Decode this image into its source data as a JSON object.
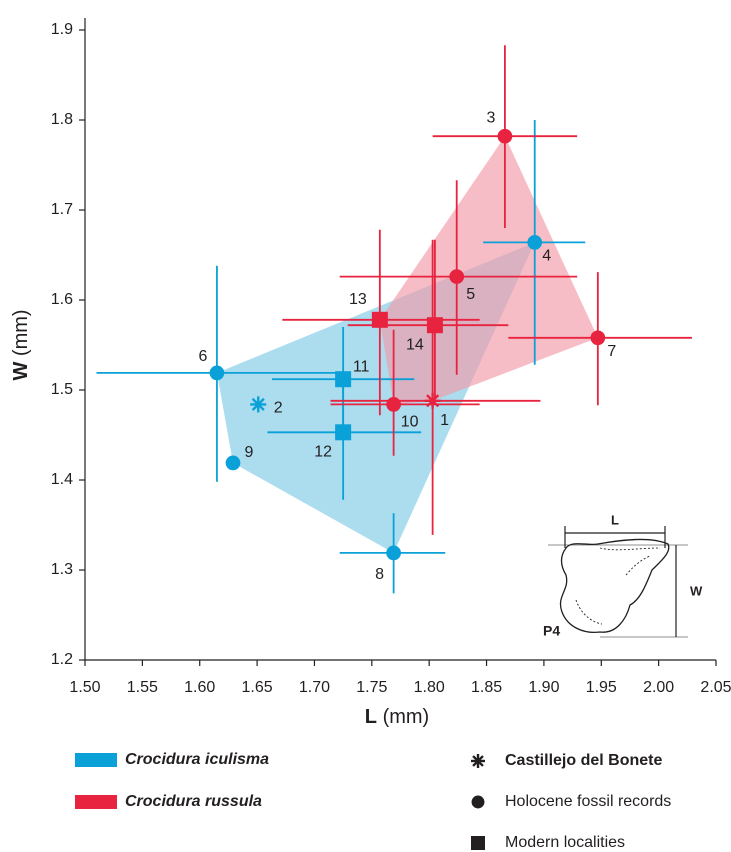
{
  "chart_data": {
    "type": "scatter",
    "x_label": "L",
    "x_unit": "(mm)",
    "y_label": "W",
    "y_unit": "(mm)",
    "xlim": [
      1.5,
      2.05
    ],
    "ylim": [
      1.2,
      1.9
    ],
    "xticks": [
      {
        "value": 1.5,
        "label": "1.50"
      },
      1.55,
      {
        "value": 1.6,
        "label": "1.60"
      },
      1.65,
      {
        "value": 1.7,
        "label": "1.70"
      },
      1.75,
      {
        "value": 1.8,
        "label": "1.80"
      },
      1.85,
      {
        "value": 1.9,
        "label": "1.90"
      },
      1.95,
      {
        "value": 2.0,
        "label": "2.00"
      },
      2.05
    ],
    "yticks": [
      1.2,
      1.3,
      1.4,
      1.5,
      1.6,
      1.7,
      1.8,
      1.9
    ],
    "series": [
      {
        "name": "Crocidura iculisma",
        "color": "#0aa0d8",
        "hull_color": "#8fd2ea",
        "points": [
          {
            "label": "2",
            "marker": "asterisk",
            "x": 1.651,
            "y": 1.484
          },
          {
            "label": "4",
            "marker": "circle",
            "x": 1.892,
            "y": 1.664,
            "x_range": [
              1.847,
              1.936
            ],
            "y_range": [
              1.528,
              1.8
            ]
          },
          {
            "label": "6",
            "marker": "circle",
            "x": 1.615,
            "y": 1.519,
            "x_range": [
              1.51,
              1.722
            ],
            "y_range": [
              1.398,
              1.638
            ]
          },
          {
            "label": "8",
            "marker": "circle",
            "x": 1.769,
            "y": 1.319,
            "x_range": [
              1.722,
              1.814
            ],
            "y_range": [
              1.274,
              1.363
            ]
          },
          {
            "label": "9",
            "marker": "circle",
            "x": 1.629,
            "y": 1.419
          },
          {
            "label": "11",
            "marker": "square",
            "x": 1.725,
            "y": 1.512,
            "x_range": [
              1.663,
              1.787
            ],
            "y_range": [
              1.456,
              1.57
            ]
          },
          {
            "label": "12",
            "marker": "square",
            "x": 1.725,
            "y": 1.453,
            "x_range": [
              1.659,
              1.793
            ],
            "y_range": [
              1.378,
              1.508
            ]
          }
        ]
      },
      {
        "name": "Crocidura russula",
        "color": "#e8233f",
        "hull_color": "#f29aa8",
        "points": [
          {
            "label": "1",
            "marker": "asterisk",
            "x": 1.803,
            "y": 1.488,
            "x_range": [
              1.714,
              1.897
            ],
            "y_range": [
              1.339,
              1.667
            ]
          },
          {
            "label": "3",
            "marker": "circle",
            "x": 1.866,
            "y": 1.782,
            "x_range": [
              1.803,
              1.929
            ],
            "y_range": [
              1.68,
              1.883
            ]
          },
          {
            "label": "5",
            "marker": "circle",
            "x": 1.824,
            "y": 1.626,
            "x_range": [
              1.722,
              1.929
            ],
            "y_range": [
              1.517,
              1.733
            ]
          },
          {
            "label": "7",
            "marker": "circle",
            "x": 1.947,
            "y": 1.558,
            "x_range": [
              1.869,
              2.029
            ],
            "y_range": [
              1.483,
              1.631
            ]
          },
          {
            "label": "10",
            "marker": "circle",
            "x": 1.769,
            "y": 1.484,
            "x_range": [
              1.714,
              1.844
            ],
            "y_range": [
              1.427,
              1.567
            ]
          },
          {
            "label": "13",
            "marker": "square",
            "x": 1.757,
            "y": 1.578,
            "x_range": [
              1.672,
              1.844
            ],
            "y_range": [
              1.472,
              1.678
            ]
          },
          {
            "label": "14",
            "marker": "square",
            "x": 1.805,
            "y": 1.572,
            "x_range": [
              1.729,
              1.869
            ],
            "y_range": [
              1.491,
              1.667
            ]
          }
        ]
      }
    ],
    "marker_legend": [
      {
        "label": "Castillejo del Bonete",
        "marker": "asterisk"
      },
      {
        "label": "Holocene fossil records",
        "marker": "circle"
      },
      {
        "label": "Modern localities",
        "marker": "square"
      }
    ],
    "inset": {
      "label": "P4",
      "width_label": "L",
      "height_label": "W"
    }
  }
}
